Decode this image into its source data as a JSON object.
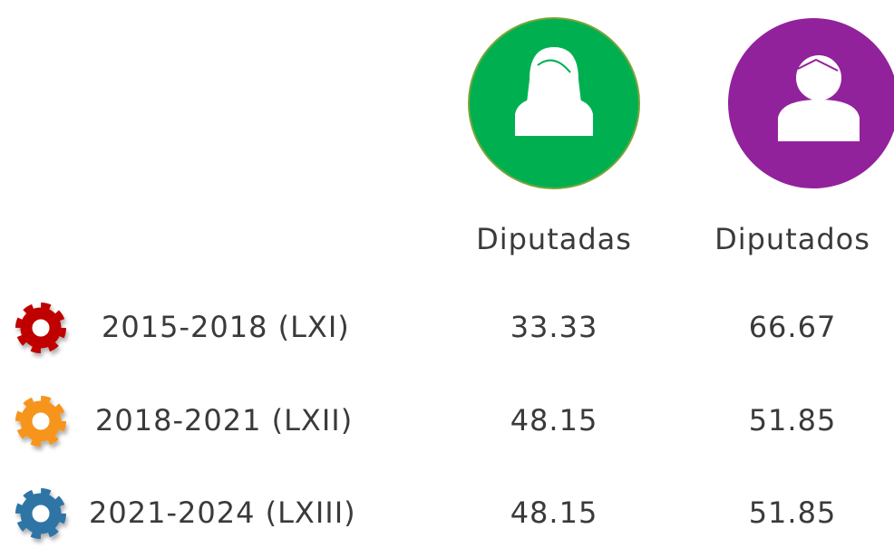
{
  "table": {
    "columns": [
      "Diputadas",
      "Diputados"
    ],
    "rows": [
      [
        "2015-2018 (LXI)",
        33.33,
        66.67
      ],
      [
        "2018-2021 (LXII)",
        48.15,
        51.85
      ],
      [
        "2021-2024 (LXIII)",
        48.15,
        51.85
      ]
    ]
  }
}
